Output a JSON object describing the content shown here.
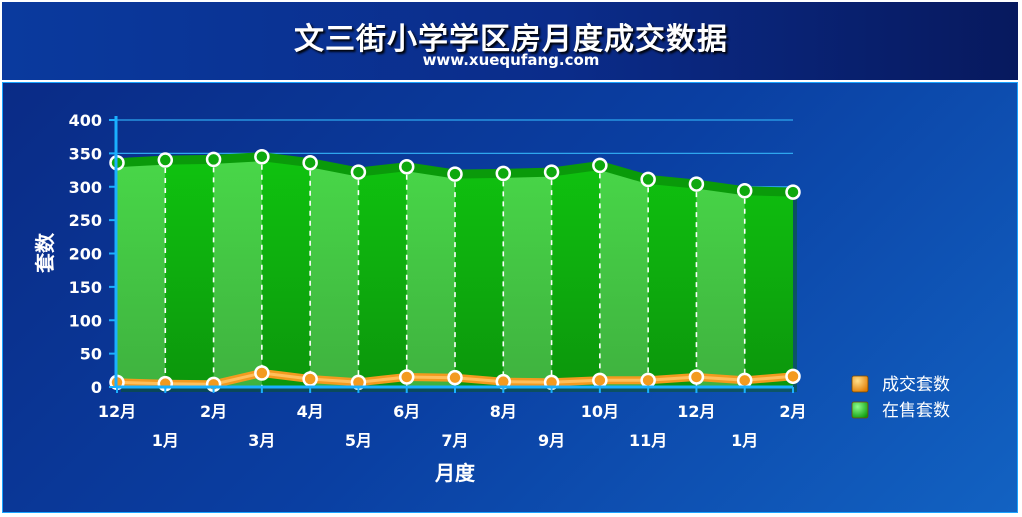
{
  "chart_data": {
    "type": "area",
    "title": "文三街小学学区房月度成交数据",
    "subtitle": "www.xuequfang.com",
    "xlabel": "月度",
    "ylabel": "套数",
    "ylim": [
      0,
      400
    ],
    "yticks": [
      0,
      50,
      100,
      150,
      200,
      250,
      300,
      350,
      400
    ],
    "categories": [
      "12月",
      "1月",
      "2月",
      "3月",
      "4月",
      "5月",
      "6月",
      "7月",
      "8月",
      "9月",
      "10月",
      "11月",
      "12月",
      "1月",
      "2月"
    ],
    "series": [
      {
        "name": "在售套数",
        "values": [
          336,
          340,
          341,
          345,
          336,
          322,
          330,
          319,
          320,
          322,
          332,
          311,
          304,
          294,
          292
        ],
        "color": "#11c411"
      },
      {
        "name": "成交套数",
        "values": [
          7,
          5,
          4,
          21,
          12,
          7,
          15,
          14,
          8,
          7,
          10,
          10,
          15,
          10,
          16
        ],
        "color": "#f39a1f"
      }
    ],
    "grid": true,
    "legend_position": "right"
  }
}
